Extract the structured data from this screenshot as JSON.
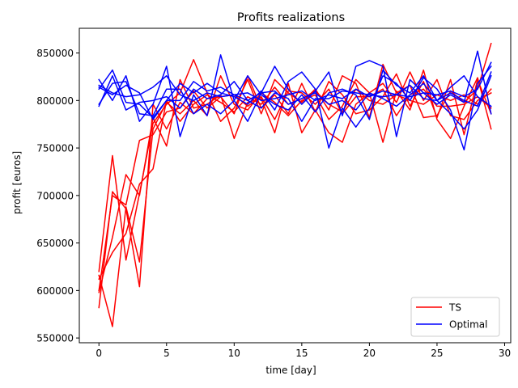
{
  "chart_data": {
    "type": "line",
    "title": "Profits realizations",
    "xlabel": "time [day]",
    "ylabel": "profit [euros]",
    "xlim": [
      -1.45,
      30.45
    ],
    "ylim": [
      545000,
      876000
    ],
    "xticks": [
      0,
      5,
      10,
      15,
      20,
      25,
      30
    ],
    "yticks": [
      550000,
      600000,
      650000,
      700000,
      750000,
      800000,
      850000
    ],
    "grid": false,
    "legend_position": "lower-right",
    "legend": [
      {
        "label": "TS",
        "color": "#ff0000"
      },
      {
        "label": "Optimal",
        "color": "#0000ff"
      }
    ],
    "x": [
      0,
      1,
      2,
      3,
      4,
      5,
      6,
      7,
      8,
      9,
      10,
      11,
      12,
      13,
      14,
      15,
      16,
      17,
      18,
      19,
      20,
      21,
      22,
      23,
      24,
      25,
      26,
      27,
      28,
      29
    ],
    "series": [
      {
        "group": "TS",
        "color": "#ff0000",
        "values": [
          620000,
          742000,
          632000,
          702000,
          776000,
          796000,
          808000,
          843000,
          808000,
          778000,
          792000,
          822000,
          786000,
          822000,
          808000,
          798000,
          812000,
          790000,
          826000,
          818000,
          782000,
          838000,
          808000,
          816000,
          782000,
          784000,
          810000,
          798000,
          812000,
          860000
        ]
      },
      {
        "group": "TS",
        "color": "#ff0000",
        "values": [
          598000,
          656000,
          722000,
          700000,
          782000,
          752000,
          822000,
          792000,
          796000,
          806000,
          760000,
          798000,
          802000,
          766000,
          818000,
          766000,
          790000,
          766000,
          756000,
          796000,
          808000,
          756000,
          810000,
          790000,
          832000,
          780000,
          760000,
          794000,
          824000,
          770000
        ]
      },
      {
        "group": "TS",
        "color": "#ff0000",
        "values": [
          582000,
          704000,
          686000,
          604000,
          796000,
          770000,
          798000,
          786000,
          802000,
          804000,
          786000,
          826000,
          792000,
          806000,
          786000,
          818000,
          788000,
          820000,
          806000,
          786000,
          790000,
          804000,
          828000,
          794000,
          820000,
          782000,
          822000,
          764000,
          822000,
          786000
        ]
      },
      {
        "group": "TS",
        "color": "#ff0000",
        "values": [
          616000,
          562000,
          688000,
          630000,
          770000,
          798000,
          786000,
          800000,
          784000,
          826000,
          796000,
          790000,
          808000,
          798000,
          784000,
          800000,
          806000,
          780000,
          794000,
          822000,
          808000,
          818000,
          798000,
          830000,
          800000,
          822000,
          784000,
          780000,
          800000,
          808000
        ]
      },
      {
        "group": "TS",
        "color": "#ff0000",
        "values": [
          600000,
          700000,
          690000,
          758000,
          764000,
          788000,
          792000,
          810000,
          792000,
          804000,
          806000,
          794000,
          804000,
          780000,
          810000,
          808000,
          796000,
          812000,
          786000,
          804000,
          804000,
          812000,
          784000,
          806000,
          812000,
          794000,
          794000,
          796000,
          804000,
          792000
        ]
      },
      {
        "group": "TS",
        "color": "#ff0000",
        "values": [
          612000,
          640000,
          660000,
          712000,
          728000,
          800000,
          778000,
          796000,
          806000,
          798000,
          788000,
          804000,
          796000,
          814000,
          796000,
          802000,
          810000,
          796000,
          788000,
          812000,
          800000,
          796000,
          806000,
          800000,
          796000,
          806000,
          800000,
          806000,
          796000,
          812000
        ]
      },
      {
        "group": "Optimal",
        "color": "#0000ff",
        "values": [
          822000,
          800000,
          826000,
          778000,
          796000,
          836000,
          762000,
          806000,
          784000,
          848000,
          800000,
          778000,
          808000,
          836000,
          812000,
          796000,
          810000,
          830000,
          784000,
          836000,
          842000,
          836000,
          762000,
          822000,
          808000,
          796000,
          806000,
          798000,
          852000,
          786000
        ]
      },
      {
        "group": "Optimal",
        "color": "#0000ff",
        "values": [
          812000,
          832000,
          798000,
          796000,
          782000,
          800000,
          818000,
          808000,
          818000,
          808000,
          804000,
          796000,
          810000,
          790000,
          820000,
          830000,
          812000,
          750000,
          792000,
          772000,
          792000,
          826000,
          818000,
          800000,
          824000,
          812000,
          790000,
          748000,
          818000,
          836000
        ]
      },
      {
        "group": "Optimal",
        "color": "#0000ff",
        "values": [
          796000,
          818000,
          820000,
          786000,
          784000,
          812000,
          812000,
          786000,
          796000,
          786000,
          800000,
          826000,
          806000,
          796000,
          790000,
          806000,
          788000,
          808000,
          812000,
          806000,
          780000,
          832000,
          816000,
          808000,
          826000,
          800000,
          786000,
          770000,
          790000,
          826000
        ]
      },
      {
        "group": "Optimal",
        "color": "#0000ff",
        "values": [
          814000,
          806000,
          816000,
          808000,
          780000,
          800000,
          800000,
          820000,
          810000,
          814000,
          806000,
          800000,
          792000,
          808000,
          802000,
          778000,
          802000,
          802000,
          810000,
          808000,
          806000,
          804000,
          806000,
          816000,
          802000,
          800000,
          814000,
          826000,
          804000,
          794000
        ]
      },
      {
        "group": "Optimal",
        "color": "#0000ff",
        "values": [
          794000,
          826000,
          790000,
          798000,
          800000,
          804000,
          792000,
          812000,
          802000,
          806000,
          820000,
          800000,
          808000,
          810000,
          796000,
          802000,
          808000,
          796000,
          800000,
          790000,
          808000,
          802000,
          794000,
          806000,
          818000,
          800000,
          808000,
          800000,
          794000,
          830000
        ]
      },
      {
        "group": "Optimal",
        "color": "#0000ff",
        "values": [
          816000,
          808000,
          804000,
          806000,
          814000,
          826000,
          806000,
          800000,
          808000,
          804000,
          806000,
          808000,
          800000,
          802000,
          806000,
          810000,
          800000,
          806000,
          802000,
          812000,
          804000,
          810000,
          806000,
          804000,
          808000,
          806000,
          810000,
          804000,
          812000,
          840000
        ]
      }
    ]
  }
}
